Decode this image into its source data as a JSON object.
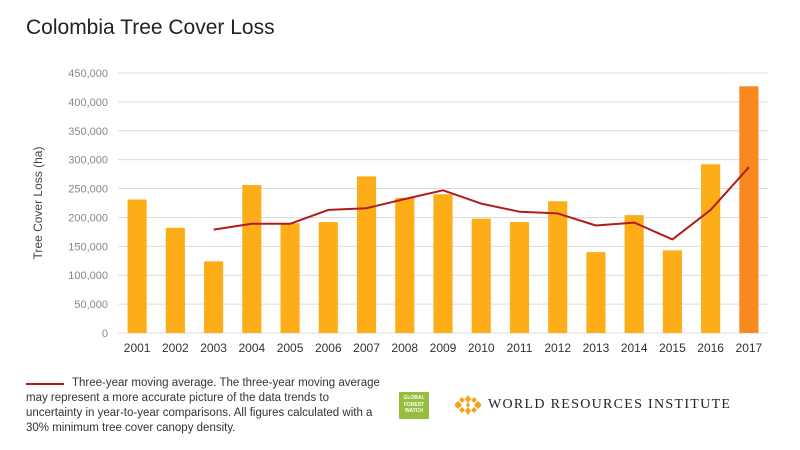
{
  "title": "Colombia Tree Cover Loss",
  "legend": {
    "text": "Three-year moving average. The three-year moving average may represent a more accurate picture of the data trends to uncertainty in year-to-year comparisons. All figures calculated with a 30% minimum tree cover canopy density.",
    "line_color": "#b01c1c"
  },
  "logos": {
    "gfw_line1": "GLOBAL",
    "gfw_line2": "FOREST",
    "gfw_line3": "WATCH",
    "wri_text": "WORLD RESOURCES INSTITUTE"
  },
  "chart_data": {
    "type": "bar",
    "title": "Colombia Tree Cover Loss",
    "xlabel": "",
    "ylabel": "Tree Cover Loss (ha)",
    "ylim": [
      0,
      450000
    ],
    "yticks": [
      0,
      50000,
      100000,
      150000,
      200000,
      250000,
      300000,
      350000,
      400000,
      450000
    ],
    "ytick_labels": [
      "0",
      "50,000",
      "100,000",
      "150,000",
      "200,000",
      "250,000",
      "300,000",
      "350,000",
      "400,000",
      "450,000"
    ],
    "grid": true,
    "categories": [
      "2001",
      "2002",
      "2003",
      "2004",
      "2005",
      "2006",
      "2007",
      "2008",
      "2009",
      "2010",
      "2011",
      "2012",
      "2013",
      "2014",
      "2015",
      "2016",
      "2017"
    ],
    "series": [
      {
        "kind": "bar",
        "values": [
          231000,
          182000,
          124000,
          256000,
          190000,
          192000,
          271000,
          234000,
          240000,
          198000,
          192000,
          228000,
          140000,
          204000,
          143000,
          292000,
          427000
        ],
        "color": "#fcad17",
        "highlight_color": "#f7891f",
        "highlight_index": 16
      },
      {
        "kind": "line",
        "values": [
          null,
          null,
          179000,
          189000,
          189000,
          213000,
          216000,
          232000,
          247000,
          224000,
          210000,
          207000,
          186000,
          191000,
          162000,
          213000,
          287000
        ],
        "color": "#b01c1c"
      }
    ]
  }
}
